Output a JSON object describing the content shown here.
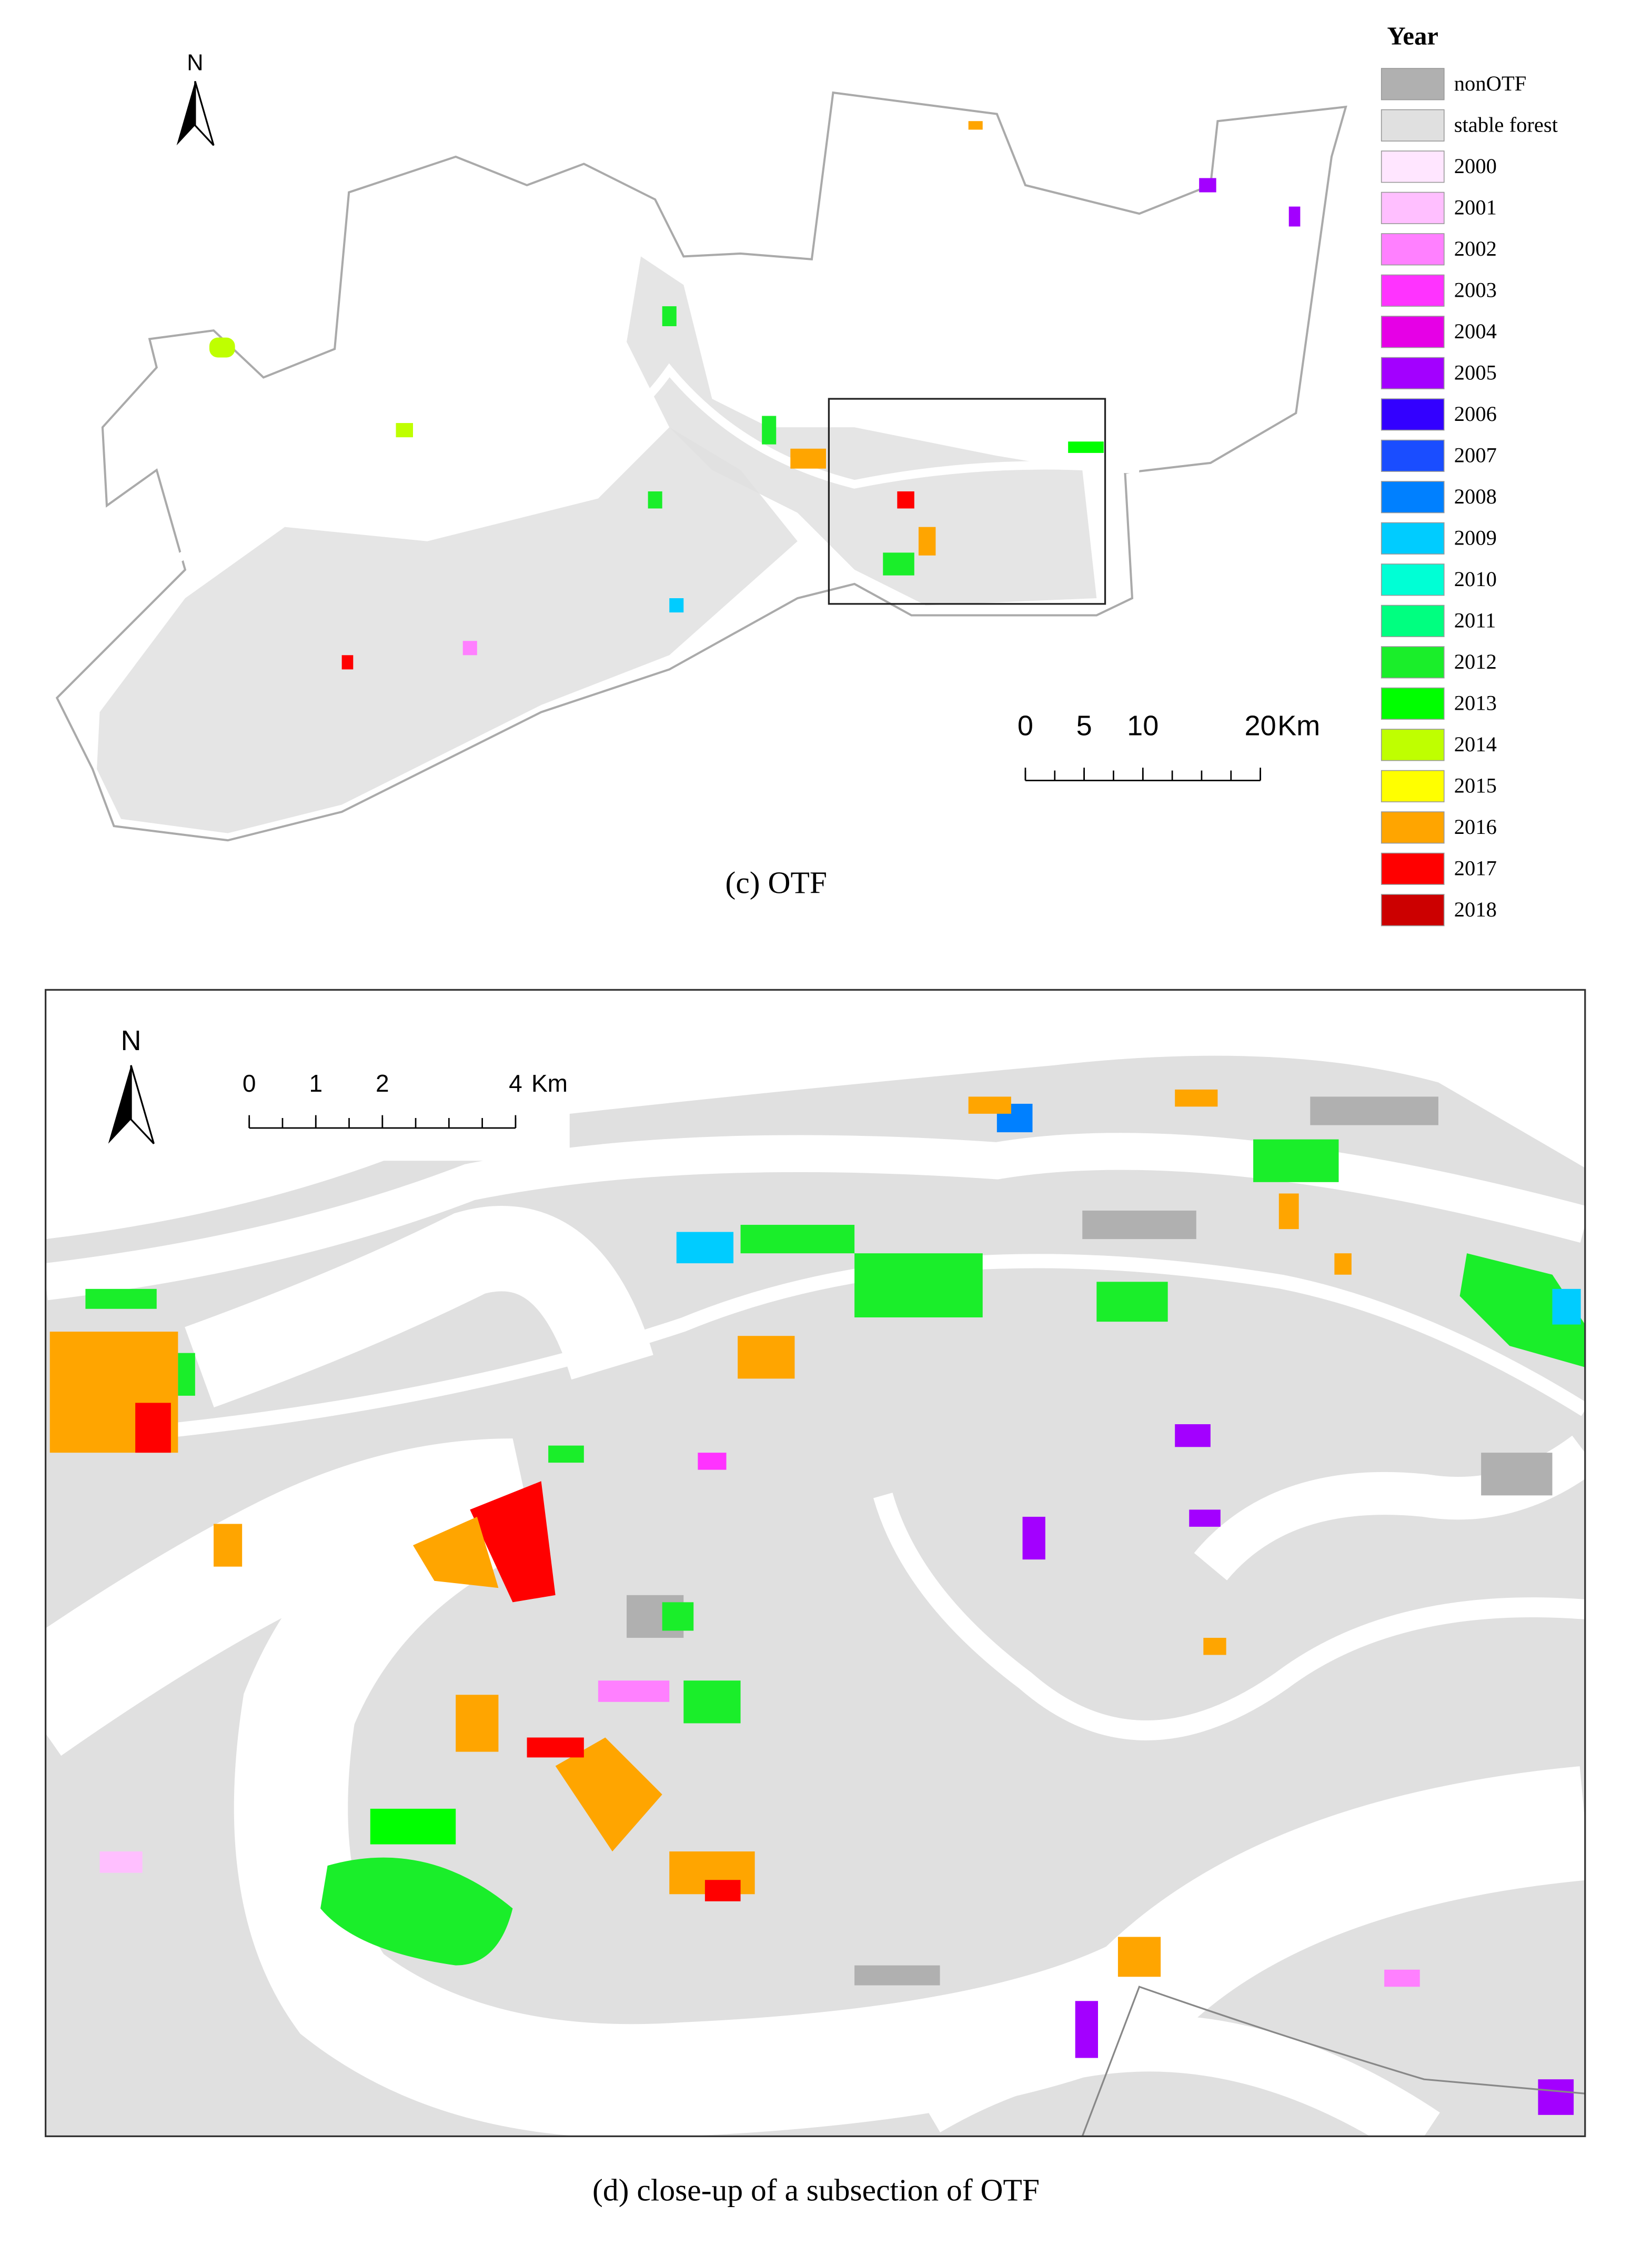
{
  "panel_c": {
    "caption": "(c) OTF",
    "north": "N",
    "scale_bar": {
      "ticks": [
        0,
        5,
        10,
        20
      ],
      "unit": "Km"
    }
  },
  "panel_d": {
    "caption": "(d)  close-up of a subsection of OTF",
    "north": "N",
    "scale_bar": {
      "ticks": [
        0,
        1,
        2,
        4
      ],
      "unit": "Km"
    }
  },
  "legend": {
    "title": "Year",
    "items": [
      {
        "label": "nonOTF",
        "color": "#b0b0b0"
      },
      {
        "label": "stable forest",
        "color": "#e0e0e0"
      },
      {
        "label": "2000",
        "color": "#ffe6ff"
      },
      {
        "label": "2001",
        "color": "#ffbfff"
      },
      {
        "label": "2002",
        "color": "#ff80ff"
      },
      {
        "label": "2003",
        "color": "#ff33ff"
      },
      {
        "label": "2004",
        "color": "#e600e6"
      },
      {
        "label": "2005",
        "color": "#a300ff"
      },
      {
        "label": "2006",
        "color": "#3300ff"
      },
      {
        "label": "2007",
        "color": "#1a4dff"
      },
      {
        "label": "2008",
        "color": "#0080ff"
      },
      {
        "label": "2009",
        "color": "#00ccff"
      },
      {
        "label": "2010",
        "color": "#00ffd5"
      },
      {
        "label": "2011",
        "color": "#00ff80"
      },
      {
        "label": "2012",
        "color": "#1aee2a"
      },
      {
        "label": "2013",
        "color": "#00ff00"
      },
      {
        "label": "2014",
        "color": "#bfff00"
      },
      {
        "label": "2015",
        "color": "#ffff00"
      },
      {
        "label": "2016",
        "color": "#ffa500"
      },
      {
        "label": "2017",
        "color": "#ff0000"
      },
      {
        "label": "2018",
        "color": "#cc0000"
      }
    ]
  }
}
